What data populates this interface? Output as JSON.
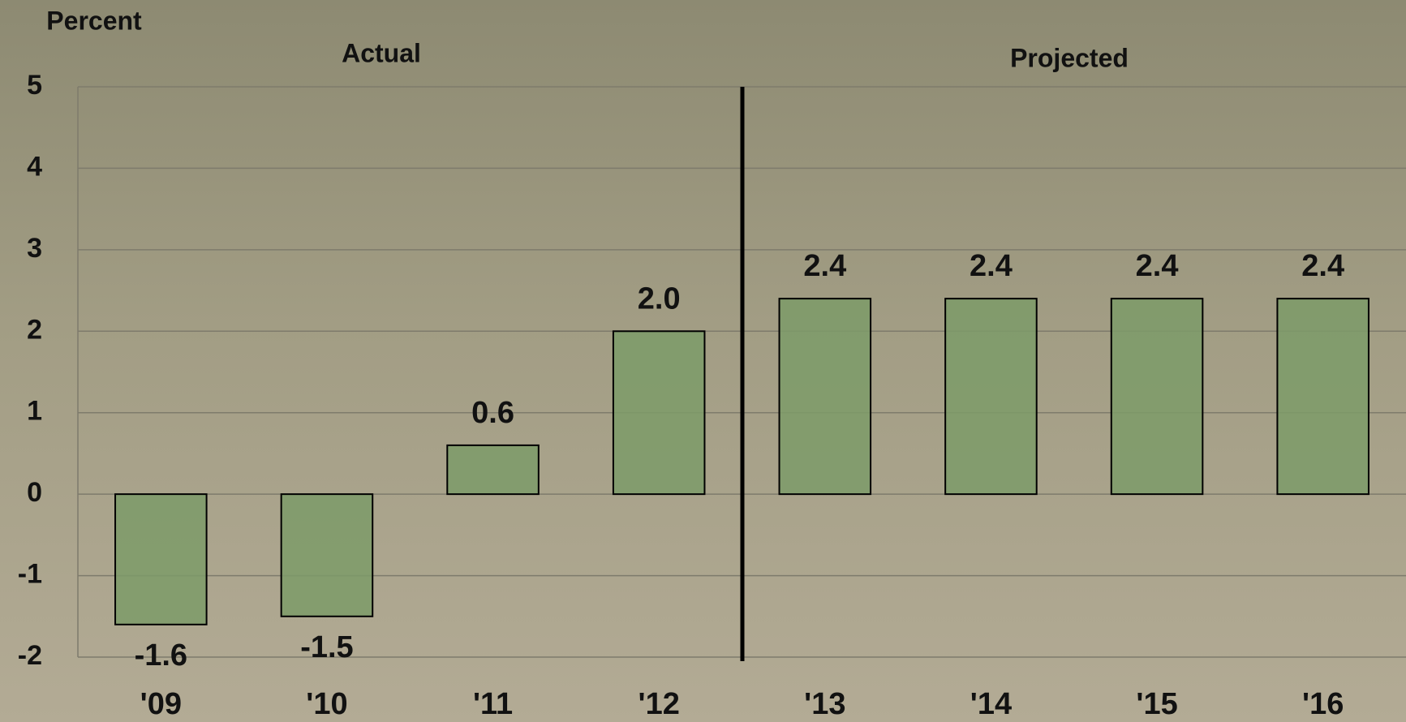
{
  "chart_data": {
    "type": "bar",
    "y_label": "Percent",
    "annotations": [
      "Actual",
      "Projected"
    ],
    "categories": [
      "'09",
      "'10",
      "'11",
      "'12",
      "'13",
      "'14",
      "'15",
      "'16"
    ],
    "values": [
      -1.6,
      -1.5,
      0.6,
      2.0,
      2.4,
      2.4,
      2.4,
      2.4
    ],
    "value_labels": [
      "-1.6",
      "-1.5",
      "0.6",
      "2.0",
      "2.4",
      "2.4",
      "2.4",
      "2.4"
    ],
    "color": "#7c9b69",
    "ylim": [
      -2,
      5
    ],
    "yticks": [
      -2,
      -1,
      0,
      1,
      2,
      3,
      4,
      5
    ],
    "grid": true
  }
}
